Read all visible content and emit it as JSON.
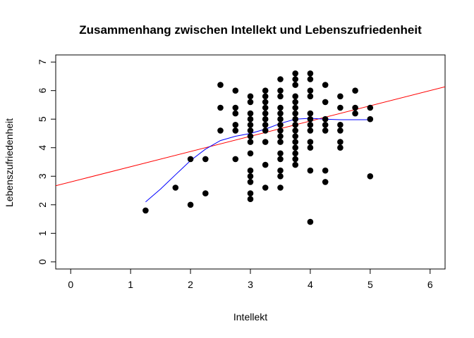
{
  "chart_data": {
    "type": "scatter",
    "title": "Zusammenhang zwischen Intellekt und Lebenszufriedenheit",
    "xlabel": "Intellekt",
    "ylabel": "Lebenszufriedenheit",
    "xlim": [
      -0.25,
      6.25
    ],
    "ylim": [
      -0.25,
      7.25
    ],
    "x_ticks": [
      "0",
      "1",
      "2",
      "3",
      "4",
      "5",
      "6"
    ],
    "y_ticks": [
      "0",
      "1",
      "2",
      "3",
      "4",
      "5",
      "6",
      "7"
    ],
    "grid": false,
    "legend": "none",
    "points": [
      [
        1.25,
        1.8
      ],
      [
        1.75,
        2.6
      ],
      [
        2.0,
        2.0
      ],
      [
        2.0,
        3.6
      ],
      [
        2.25,
        2.4
      ],
      [
        2.25,
        3.6
      ],
      [
        2.5,
        4.6
      ],
      [
        2.5,
        5.4
      ],
      [
        2.5,
        6.2
      ],
      [
        2.75,
        3.6
      ],
      [
        2.75,
        4.6
      ],
      [
        2.75,
        4.8
      ],
      [
        2.75,
        5.2
      ],
      [
        2.75,
        5.4
      ],
      [
        2.75,
        6.0
      ],
      [
        3.0,
        2.2
      ],
      [
        3.0,
        2.4
      ],
      [
        3.0,
        2.8
      ],
      [
        3.0,
        3.0
      ],
      [
        3.0,
        3.2
      ],
      [
        3.0,
        3.8
      ],
      [
        3.0,
        4.2
      ],
      [
        3.0,
        4.4
      ],
      [
        3.0,
        4.6
      ],
      [
        3.0,
        4.8
      ],
      [
        3.0,
        5.0
      ],
      [
        3.0,
        5.2
      ],
      [
        3.0,
        5.6
      ],
      [
        3.0,
        5.8
      ],
      [
        3.25,
        2.6
      ],
      [
        3.25,
        3.4
      ],
      [
        3.25,
        4.2
      ],
      [
        3.25,
        4.6
      ],
      [
        3.25,
        4.8
      ],
      [
        3.25,
        5.0
      ],
      [
        3.25,
        5.2
      ],
      [
        3.25,
        5.4
      ],
      [
        3.25,
        5.6
      ],
      [
        3.25,
        5.8
      ],
      [
        3.25,
        6.0
      ],
      [
        3.5,
        2.6
      ],
      [
        3.5,
        3.0
      ],
      [
        3.5,
        3.2
      ],
      [
        3.5,
        3.6
      ],
      [
        3.5,
        3.8
      ],
      [
        3.5,
        4.2
      ],
      [
        3.5,
        4.4
      ],
      [
        3.5,
        4.6
      ],
      [
        3.5,
        4.8
      ],
      [
        3.5,
        5.0
      ],
      [
        3.5,
        5.2
      ],
      [
        3.5,
        5.4
      ],
      [
        3.5,
        5.8
      ],
      [
        3.5,
        6.0
      ],
      [
        3.5,
        6.4
      ],
      [
        3.75,
        3.4
      ],
      [
        3.75,
        3.6
      ],
      [
        3.75,
        3.8
      ],
      [
        3.75,
        4.0
      ],
      [
        3.75,
        4.2
      ],
      [
        3.75,
        4.4
      ],
      [
        3.75,
        4.6
      ],
      [
        3.75,
        4.8
      ],
      [
        3.75,
        5.0
      ],
      [
        3.75,
        5.2
      ],
      [
        3.75,
        5.4
      ],
      [
        3.75,
        5.6
      ],
      [
        3.75,
        5.8
      ],
      [
        3.75,
        6.2
      ],
      [
        3.75,
        6.4
      ],
      [
        3.75,
        6.6
      ],
      [
        4.0,
        1.4
      ],
      [
        4.0,
        3.2
      ],
      [
        4.0,
        4.0
      ],
      [
        4.0,
        4.2
      ],
      [
        4.0,
        4.6
      ],
      [
        4.0,
        4.8
      ],
      [
        4.0,
        5.0
      ],
      [
        4.0,
        5.2
      ],
      [
        4.0,
        5.8
      ],
      [
        4.0,
        6.0
      ],
      [
        4.0,
        6.4
      ],
      [
        4.0,
        6.6
      ],
      [
        4.25,
        2.8
      ],
      [
        4.25,
        3.2
      ],
      [
        4.25,
        4.6
      ],
      [
        4.25,
        4.8
      ],
      [
        4.25,
        5.0
      ],
      [
        4.25,
        5.6
      ],
      [
        4.25,
        6.2
      ],
      [
        4.5,
        4.0
      ],
      [
        4.5,
        4.2
      ],
      [
        4.5,
        4.6
      ],
      [
        4.5,
        4.8
      ],
      [
        4.5,
        5.4
      ],
      [
        4.5,
        5.8
      ],
      [
        4.75,
        5.2
      ],
      [
        4.75,
        5.4
      ],
      [
        4.75,
        6.0
      ],
      [
        5.0,
        3.0
      ],
      [
        5.0,
        5.0
      ],
      [
        5.0,
        5.4
      ]
    ],
    "series": [
      {
        "type": "line",
        "color": "#ff0000",
        "x": [
          -0.25,
          6.25
        ],
        "y": [
          2.665,
          6.135
        ]
      },
      {
        "type": "line",
        "color": "#0000ff",
        "x": [
          1.25,
          1.5,
          1.75,
          2.0,
          2.25,
          2.5,
          2.75,
          3.0,
          3.25,
          3.5,
          3.75,
          4.0,
          4.25,
          4.5,
          4.75,
          5.0
        ],
        "y": [
          2.1,
          2.55,
          3.05,
          3.55,
          3.95,
          4.25,
          4.4,
          4.5,
          4.65,
          4.85,
          5.0,
          5.03,
          5.0,
          4.98,
          4.98,
          4.98
        ]
      }
    ],
    "colors": {
      "points": "#000000",
      "axes": "#000000"
    }
  }
}
